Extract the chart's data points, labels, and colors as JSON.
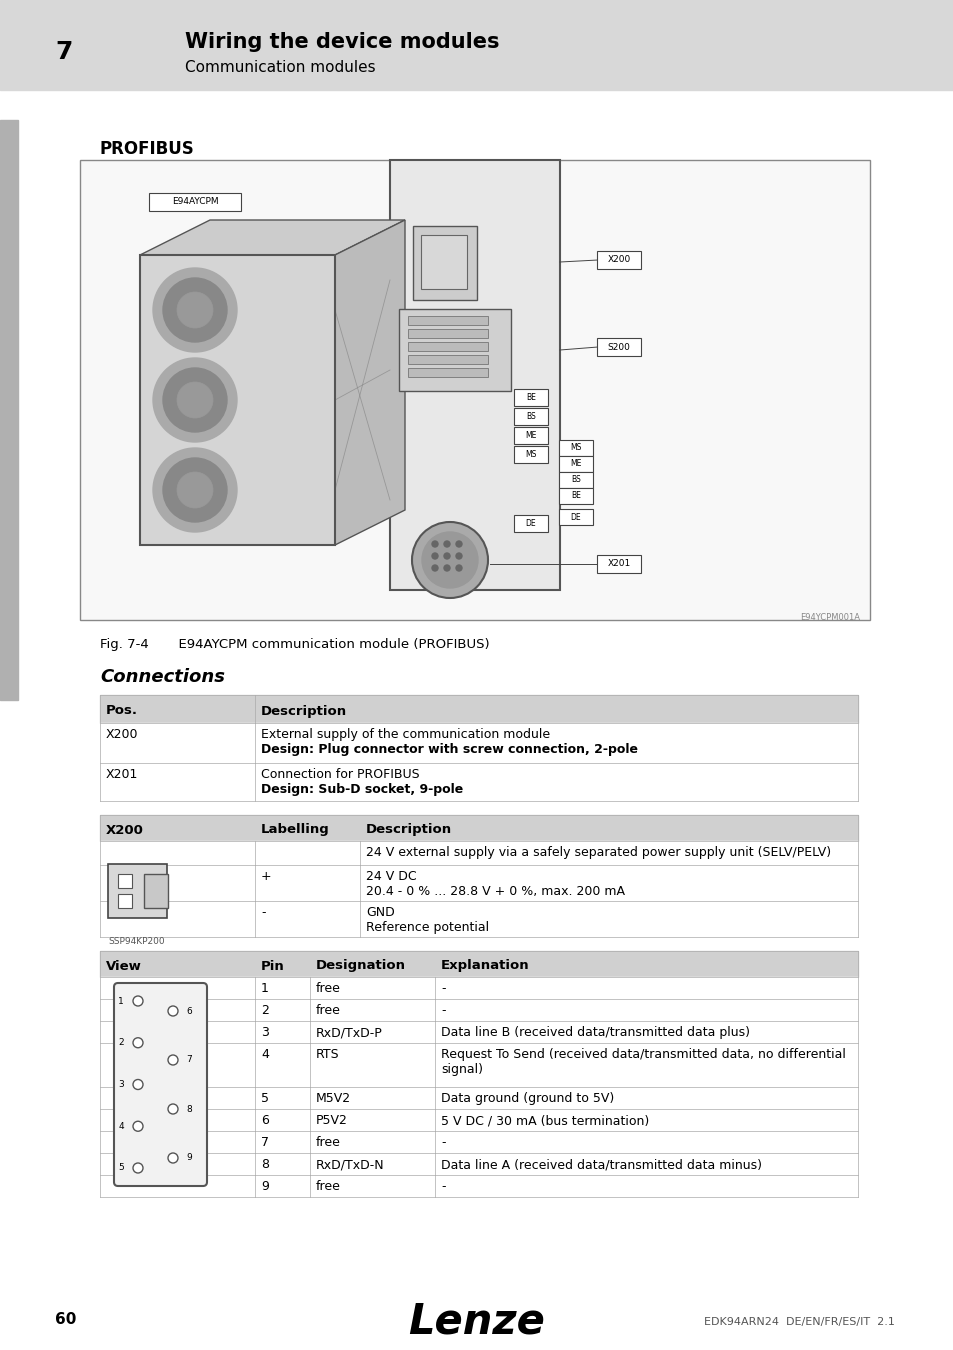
{
  "page_num": "60",
  "footer_center": "Lenze",
  "footer_right": "EDK94ARN24  DE/EN/FR/ES/IT  2.1",
  "chapter_num": "7",
  "chapter_title": "Wiring the device modules",
  "chapter_sub": "Communication modules",
  "header_bg": "#d8d8d8",
  "section_profibus": "PROFIBUS",
  "fig_caption": "Fig. 7-4       E94AYCPM communication module (PROFIBUS)",
  "section_connections": "Connections",
  "bg_color": "#ffffff",
  "table_header_bg": "#d0d0d0",
  "table_border": "#aaaaaa"
}
